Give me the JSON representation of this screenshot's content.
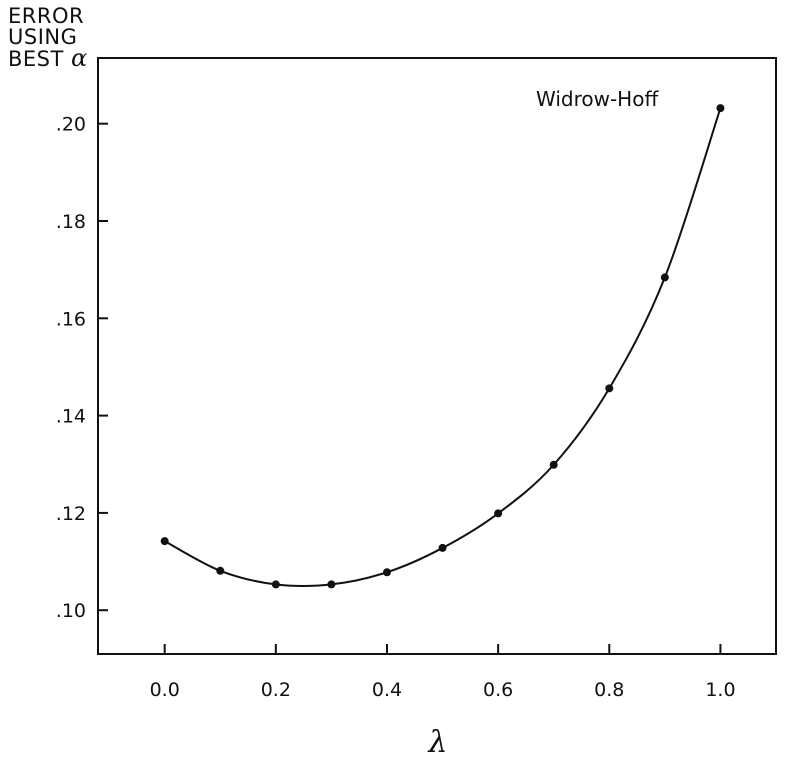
{
  "chart_data": {
    "type": "line",
    "title": "",
    "ylabel_lines": [
      "ERROR",
      "USING",
      "BEST"
    ],
    "ylabel_symbol": "α",
    "xlabel": "λ",
    "annotation": "Widrow-Hoff",
    "xlim": [
      -0.12,
      1.1
    ],
    "ylim": [
      0.091,
      0.2135
    ],
    "x_ticks": [
      0.0,
      0.2,
      0.4,
      0.6,
      0.8,
      1.0
    ],
    "x_tick_labels": [
      "0.0",
      "0.2",
      "0.4",
      "0.6",
      "0.8",
      "1.0"
    ],
    "y_ticks": [
      0.1,
      0.12,
      0.14,
      0.16,
      0.18,
      0.2
    ],
    "y_tick_labels": [
      ".10",
      ".12",
      ".14",
      ".16",
      ".18",
      ".20"
    ],
    "grid": false,
    "series": [
      {
        "x": [
          0.0,
          0.1,
          0.2,
          0.3,
          0.4,
          0.5,
          0.6,
          0.7,
          0.8,
          0.9,
          1.0
        ],
        "y": [
          0.1142,
          0.1081,
          0.1053,
          0.1053,
          0.1078,
          0.1128,
          0.1199,
          0.1299,
          0.1456,
          0.1684,
          0.2032
        ]
      }
    ],
    "color": "#111111"
  }
}
